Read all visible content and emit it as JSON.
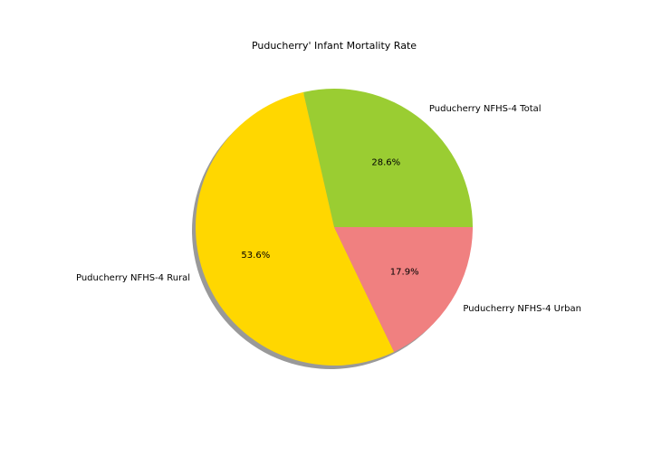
{
  "chart_data": {
    "type": "pie",
    "title": "Puducherry' Infant Mortality Rate",
    "labels": [
      "Puducherry NFHS-4 Total",
      "Puducherry NFHS-4 Rural",
      "Puducherry NFHS-4 Urban"
    ],
    "percentages": [
      28.6,
      53.6,
      17.9
    ],
    "pct_labels": [
      "28.6%",
      "53.6%",
      "17.9%"
    ],
    "colors": [
      "#9acd32",
      "#ffd700",
      "#f08080"
    ],
    "start_angle_deg": 0,
    "direction": "counterclockwise",
    "shadow": true
  }
}
